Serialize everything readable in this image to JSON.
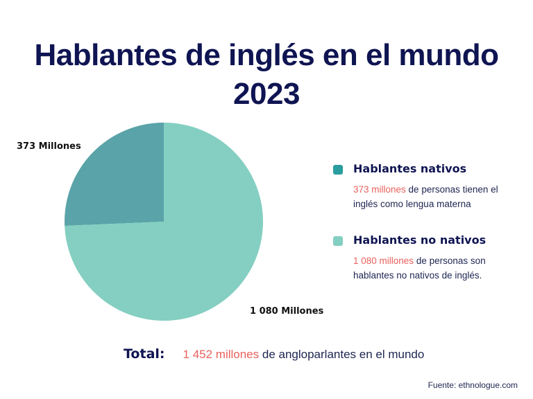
{
  "title": {
    "line1": "Hablantes de inglés en el mundo",
    "line2": "2023"
  },
  "chart_data": {
    "type": "pie",
    "title": "Hablantes de inglés en el mundo 2023",
    "slices": [
      {
        "name": "Hablantes nativos",
        "value": 373,
        "label": "373 Millones",
        "color": "#5aa3a8"
      },
      {
        "name": "Hablantes no nativos",
        "value": 1080,
        "label": "1 080 Millones",
        "color": "#84cfc2"
      }
    ],
    "legend_position": "right"
  },
  "legend": {
    "items": [
      {
        "title": "Hablantes nativos",
        "highlight": "373 millones",
        "text": " de personas tienen el inglés como lengua materna",
        "swatch_color": "#2a9d9f"
      },
      {
        "title": "Hablantes no nativos",
        "highlight": "1 080 millones",
        "text": " de personas son hablantes no nativos de inglés.",
        "swatch_color": "#84cfc2"
      }
    ]
  },
  "total": {
    "label": "Total:",
    "highlight": "1 452 millones",
    "text": " de angloparlantes en el mundo"
  },
  "source": "Fuente: ethnologue.com",
  "colors": {
    "title": "#0f1452",
    "highlight": "#e8615c"
  }
}
